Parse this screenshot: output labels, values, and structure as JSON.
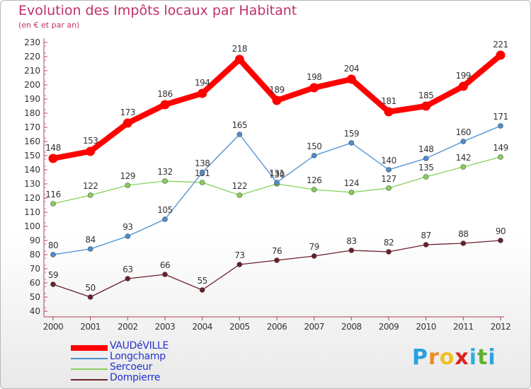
{
  "header": {
    "title": "Evolution des Impôts locaux par Habitant",
    "subtitle": "(en € et par an)"
  },
  "logo": {
    "letters": [
      "P",
      "r",
      "o",
      "x",
      "i",
      "t",
      "i"
    ],
    "colors": [
      "#2aa0e0",
      "#f08a20",
      "#f0c020",
      "#e02020",
      "#30b0e0",
      "#60b030",
      "#30a0e0"
    ]
  },
  "chart_data": {
    "type": "line",
    "title": "Evolution des Impôts locaux par Habitant",
    "subtitle": "(en € et par an)",
    "x": [
      "2000",
      "2001",
      "2002",
      "2003",
      "2004",
      "2005",
      "2006",
      "2007",
      "2008",
      "2009",
      "2010",
      "2011",
      "2012"
    ],
    "ylim": [
      40,
      230
    ],
    "yticks": [
      40,
      50,
      60,
      70,
      80,
      90,
      100,
      110,
      120,
      130,
      140,
      150,
      160,
      170,
      180,
      190,
      200,
      210,
      220,
      230
    ],
    "grid": false,
    "legend_position": "bottom-left",
    "series": [
      {
        "name": "VAUDéVILLE",
        "color": "#ff0000",
        "values": [
          148,
          153,
          173,
          186,
          194,
          218,
          189,
          198,
          204,
          181,
          185,
          199,
          221
        ]
      },
      {
        "name": "Longchamp",
        "color": "#4a8fd0",
        "values": [
          80,
          84,
          93,
          105,
          138,
          165,
          131,
          150,
          159,
          140,
          148,
          160,
          171
        ]
      },
      {
        "name": "Sercoeur",
        "color": "#88d058",
        "values": [
          116,
          122,
          129,
          132,
          131,
          122,
          130,
          126,
          124,
          127,
          135,
          142,
          149
        ]
      },
      {
        "name": "Dompierre",
        "color": "#6b1f2a",
        "values": [
          59,
          50,
          63,
          66,
          55,
          73,
          76,
          79,
          83,
          82,
          87,
          88,
          90
        ]
      }
    ]
  }
}
